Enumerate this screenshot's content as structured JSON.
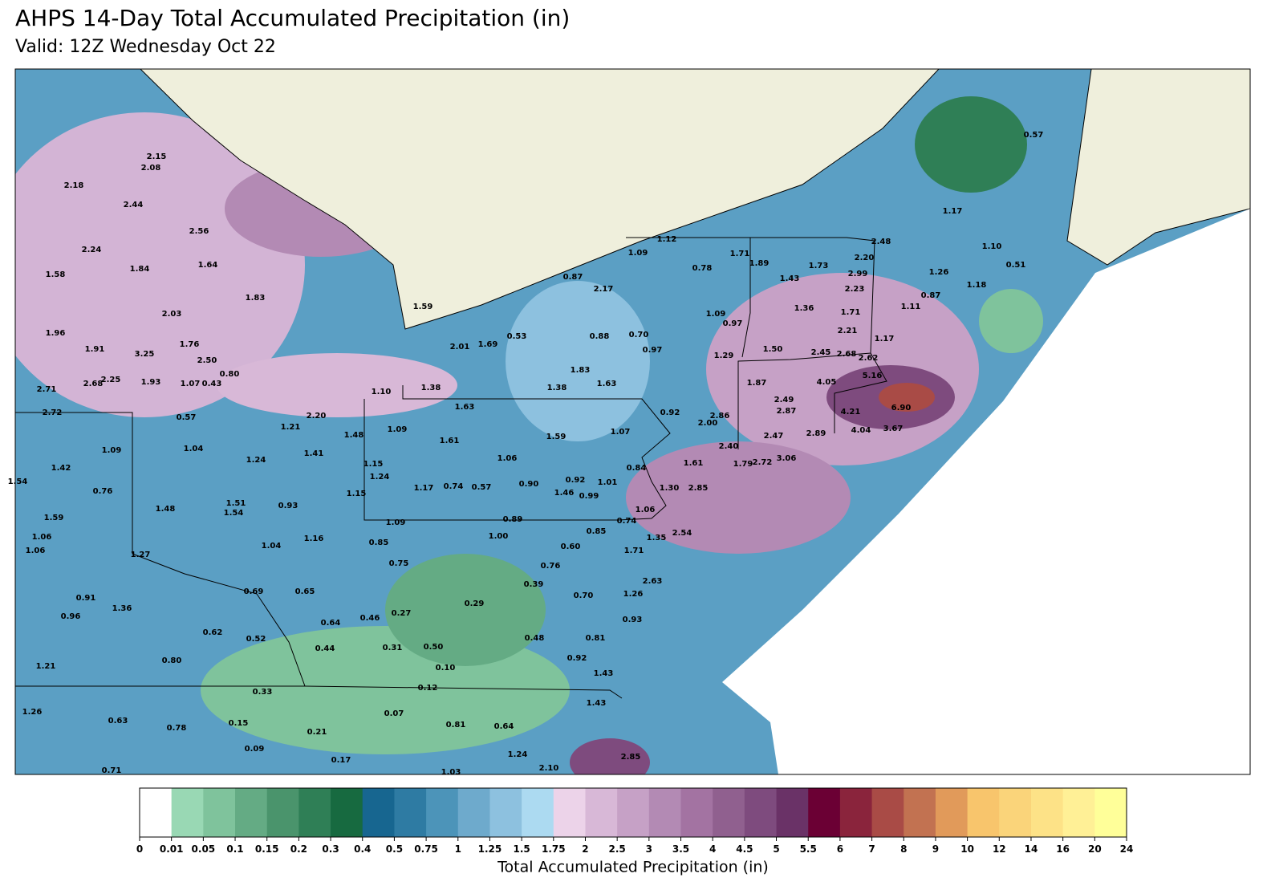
{
  "chart_data": {
    "type": "map",
    "title": "AHPS 14-Day Total Accumulated Precipitation (in)",
    "subtitle": "Valid: 12Z Wednesday Oct 22",
    "station_labels": [
      "2.15",
      "2.08",
      "2.18",
      "2.44",
      "2.56",
      "2.24",
      "1.84",
      "1.64",
      "1.58",
      "1.83",
      "2.03",
      "1.96",
      "1.91",
      "3.25",
      "1.76",
      "2.50",
      "0.80",
      "2.25",
      "2.68",
      "1.93",
      "1.07",
      "0.43",
      "2.71",
      "2.72",
      "0.57",
      "1.21",
      "2.20",
      "1.10",
      "1.38",
      "1.63",
      "1.48",
      "1.09",
      "1.61",
      "1.04",
      "1.09",
      "1.24",
      "1.41",
      "1.42",
      "1.54",
      "0.76",
      "1.15",
      "1.24",
      "1.17",
      "0.74",
      "0.57",
      "1.15",
      "1.48",
      "1.51",
      "1.54",
      "0.93",
      "1.59",
      "1.06",
      "1.06",
      "1.04",
      "1.16",
      "0.85",
      "1.09",
      "0.89",
      "1.00",
      "1.27",
      "0.75",
      "0.69",
      "0.65",
      "0.91",
      "0.96",
      "1.36",
      "0.64",
      "0.46",
      "0.27",
      "0.29",
      "0.62",
      "0.52",
      "0.44",
      "0.31",
      "0.50",
      "0.80",
      "1.21",
      "0.10",
      "0.33",
      "0.12",
      "1.26",
      "0.07",
      "0.63",
      "0.78",
      "0.15",
      "0.21",
      "0.81",
      "0.64",
      "0.09",
      "0.17",
      "1.24",
      "0.71",
      "1.03",
      "2.10",
      "2.85",
      "1.59",
      "2.01",
      "1.69",
      "0.53",
      "0.87",
      "2.17",
      "1.12",
      "1.09",
      "0.78",
      "1.71",
      "1.89",
      "1.43",
      "1.73",
      "0.88",
      "0.70",
      "0.97",
      "1.09",
      "0.97",
      "1.29",
      "1.50",
      "1.36",
      "1.83",
      "1.38",
      "1.63",
      "1.59",
      "1.07",
      "0.92",
      "2.00",
      "2.86",
      "1.87",
      "2.49",
      "2.87",
      "1.06",
      "0.92",
      "1.01",
      "0.90",
      "1.46",
      "0.99",
      "0.84",
      "1.61",
      "1.30",
      "2.85",
      "2.40",
      "1.79",
      "2.72",
      "3.06",
      "2.47",
      "2.89",
      "1.06",
      "0.74",
      "0.85",
      "1.35",
      "2.54",
      "0.60",
      "1.71",
      "0.76",
      "0.39",
      "0.70",
      "2.63",
      "1.26",
      "0.93",
      "0.48",
      "0.81",
      "0.92",
      "1.43",
      "1.43",
      "2.48",
      "2.20",
      "2.99",
      "2.23",
      "1.71",
      "2.21",
      "2.45",
      "2.68",
      "2.62",
      "1.17",
      "4.05",
      "5.16",
      "4.21",
      "6.90",
      "4.04",
      "3.67",
      "0.57",
      "1.17",
      "1.10",
      "1.26",
      "0.51",
      "1.18",
      "0.87",
      "1.11"
    ],
    "colorbar": {
      "label": "Total Accumulated Precipitation (in)",
      "boundaries": [
        0,
        0.01,
        0.05,
        0.1,
        0.15,
        0.2,
        0.3,
        0.4,
        0.5,
        0.75,
        1,
        1.25,
        1.5,
        1.75,
        2,
        2.5,
        3,
        3.5,
        4,
        4.5,
        5,
        5.5,
        6,
        7,
        8,
        9,
        10,
        12,
        14,
        16,
        20,
        24
      ],
      "colors": [
        "#ffffff",
        "#99d8b4",
        "#7fc39c",
        "#64ab84",
        "#4a946c",
        "#2f7f56",
        "#176a40",
        "#176690",
        "#2e7ba3",
        "#4c94b9",
        "#6eaacc",
        "#8dc1df",
        "#acdaf1",
        "#ecd3e9",
        "#d8b8d7",
        "#c6a1c6",
        "#b38ab4",
        "#a373a2",
        "#90608f",
        "#7e4b7e",
        "#6a3267",
        "#6b0034",
        "#8a243c",
        "#a94b46",
        "#c27251",
        "#e19a5a",
        "#f8c56c",
        "#fad47a",
        "#fde287",
        "#fff096",
        "#ffff99"
      ]
    }
  }
}
